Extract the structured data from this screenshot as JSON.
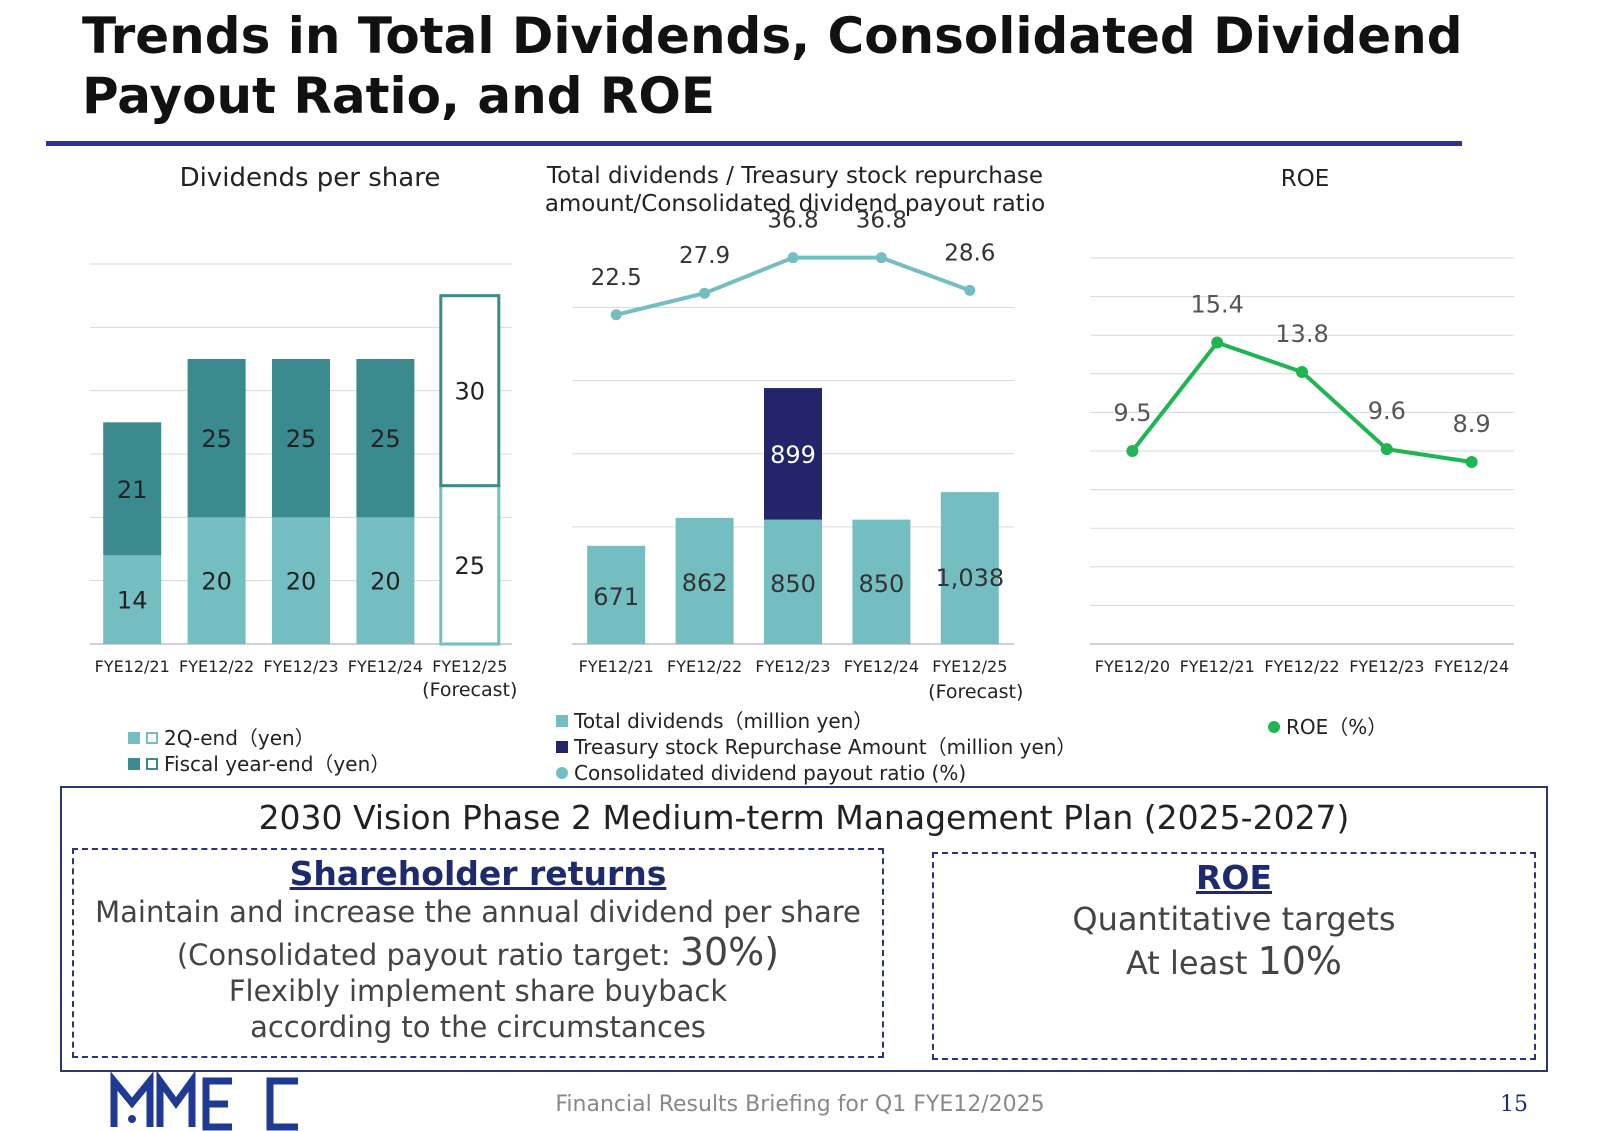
{
  "page": {
    "title_line1": "Trends in Total Dividends, Consolidated Dividend",
    "title_line2": "Payout Ratio, and ROE",
    "footer": "Financial Results Briefing for Q1 FYE12/2025",
    "page_number": "15",
    "logo_text": "MMEC"
  },
  "colors": {
    "teal_light": "#74bec2",
    "teal_dark": "#3a8a8e",
    "navy": "#23256b",
    "green": "#1fb552",
    "rule": "#2b3596",
    "gridline": "#d9d9d9"
  },
  "chart_data": [
    {
      "id": "dps",
      "type": "bar",
      "stacked": true,
      "title": "Dividends per share",
      "categories": [
        "FYE12/21",
        "FYE12/22",
        "FYE12/23",
        "FYE12/24",
        "FYE12/25"
      ],
      "category_sublabels": [
        "",
        "",
        "",
        "",
        "(Forecast)"
      ],
      "series": [
        {
          "name": "2Q-end（yen）",
          "values": [
            14,
            20,
            20,
            20,
            25
          ]
        },
        {
          "name": "Fiscal year-end（yen）",
          "values": [
            21,
            25,
            25,
            25,
            30
          ]
        }
      ],
      "forecast_index": 4,
      "ylim": [
        0,
        60
      ],
      "grid": true,
      "legend_position": "bottom"
    },
    {
      "id": "total_dividends",
      "type": "bar",
      "stacked": true,
      "title_line1": "Total dividends / Treasury stock repurchase",
      "title_line2": "amount/Consolidated dividend payout ratio",
      "categories": [
        "FYE12/21",
        "FYE12/22",
        "FYE12/23",
        "FYE12/24",
        "FYE12/25"
      ],
      "category_sublabels": [
        "",
        "",
        "",
        "",
        "(Forecast)"
      ],
      "series": [
        {
          "name": "Total dividends（million yen）",
          "values": [
            671,
            862,
            850,
            850,
            1038
          ],
          "labels": [
            "671",
            "862",
            "850",
            "850",
            "1,038"
          ]
        },
        {
          "name": "Treasury stock Repurchase Amount（million yen）",
          "values": [
            0,
            0,
            899,
            0,
            0
          ],
          "labels": [
            "",
            "",
            "899",
            "",
            ""
          ]
        }
      ],
      "bar_ylim": [
        0,
        3000
      ],
      "line_series": {
        "name": "Consolidated dividend payout ratio (%)",
        "values": [
          22.5,
          27.9,
          36.8,
          36.8,
          28.6
        ],
        "labels": [
          "22.5",
          "27.9",
          "36.8",
          "36.8",
          "28.6"
        ]
      },
      "line_ylim": [
        -60,
        50
      ],
      "grid": true,
      "legend_position": "bottom"
    },
    {
      "id": "roe",
      "type": "line",
      "title": "ROE",
      "categories": [
        "FYE12/20",
        "FYE12/21",
        "FYE12/22",
        "FYE12/23",
        "FYE12/24"
      ],
      "series": [
        {
          "name": "ROE（%）",
          "values": [
            9.5,
            15.4,
            13.8,
            9.6,
            8.9
          ],
          "labels": [
            "9.5",
            "15.4",
            "13.8",
            "9.6",
            "8.9"
          ]
        }
      ],
      "ylim": [
        -1,
        20
      ],
      "grid": true,
      "legend_position": "bottom"
    }
  ],
  "plan": {
    "title": "2030 Vision Phase 2 Medium-term Management Plan (2025-2027)",
    "shareholder": {
      "heading": "Shareholder returns",
      "line1": "Maintain and increase the annual dividend per share",
      "line2_pre": "(Consolidated payout ratio target: ",
      "line2_big": "30%",
      "line2_post": ")",
      "line3": "Flexibly implement share buyback",
      "line4": "according to the circumstances"
    },
    "roe": {
      "heading": "ROE",
      "line1": "Quantitative targets",
      "line2_pre": "At least ",
      "line2_big": "10%"
    }
  }
}
